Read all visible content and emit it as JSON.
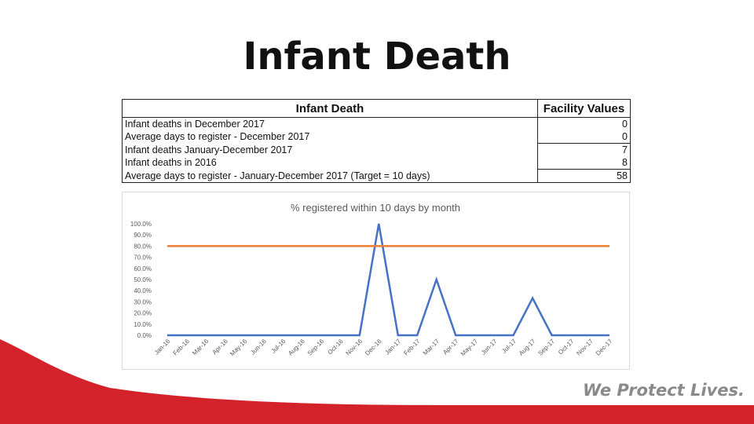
{
  "slide": {
    "title": "Infant Death",
    "tagline": "We Protect Lives.",
    "colors": {
      "brand_red": "#d3222a",
      "tagline_gray": "#8a8a8a"
    }
  },
  "table": {
    "headers": [
      "Infant Death",
      "Facility Values"
    ],
    "rows": [
      {
        "label": "Infant deaths in December 2017",
        "value": "0"
      },
      {
        "label": "Average days to register - December 2017",
        "value": "0"
      },
      {
        "label": "Infant deaths   January-December 2017",
        "value": "7"
      },
      {
        "label": "Infant deaths in 2016",
        "value": "8"
      },
      {
        "label": "Average days to register - January-December 2017   (Target = 10 days)",
        "value": "58"
      }
    ]
  },
  "chart_data": {
    "type": "line",
    "title": "% registered within 10 days by month",
    "xlabel": "",
    "ylabel": "",
    "ylim": [
      0,
      100
    ],
    "y_ticks": [
      "0.0%",
      "10.0%",
      "20.0%",
      "30.0%",
      "40.0%",
      "50.0%",
      "60.0%",
      "70.0%",
      "80.0%",
      "90.0%",
      "100.0%"
    ],
    "grid": false,
    "legend": "none",
    "categories": [
      "Jan-16",
      "Feb-16",
      "Mar-16",
      "Apr-16",
      "May-16",
      "Jun-16",
      "Jul-16",
      "Aug-16",
      "Sep-16",
      "Oct-16",
      "Nov-16",
      "Dec-16",
      "Jan-17",
      "Feb-17",
      "Mar-17",
      "Apr-17",
      "May-17",
      "Jun-17",
      "Jul-17",
      "Aug-17",
      "Sep-17",
      "Oct-17",
      "Nov-17",
      "Dec-17"
    ],
    "series": [
      {
        "color": "#4472c4",
        "values": [
          0,
          0,
          0,
          0,
          0,
          0,
          0,
          0,
          0,
          0,
          0,
          100,
          0,
          0,
          50,
          0,
          0,
          0,
          0,
          33.3,
          0,
          0,
          0,
          0
        ]
      },
      {
        "color": "#ed7d31",
        "values": [
          80,
          80,
          80,
          80,
          80,
          80,
          80,
          80,
          80,
          80,
          80,
          80,
          80,
          80,
          80,
          80,
          80,
          80,
          80,
          80,
          80,
          80,
          80,
          80
        ]
      }
    ]
  }
}
